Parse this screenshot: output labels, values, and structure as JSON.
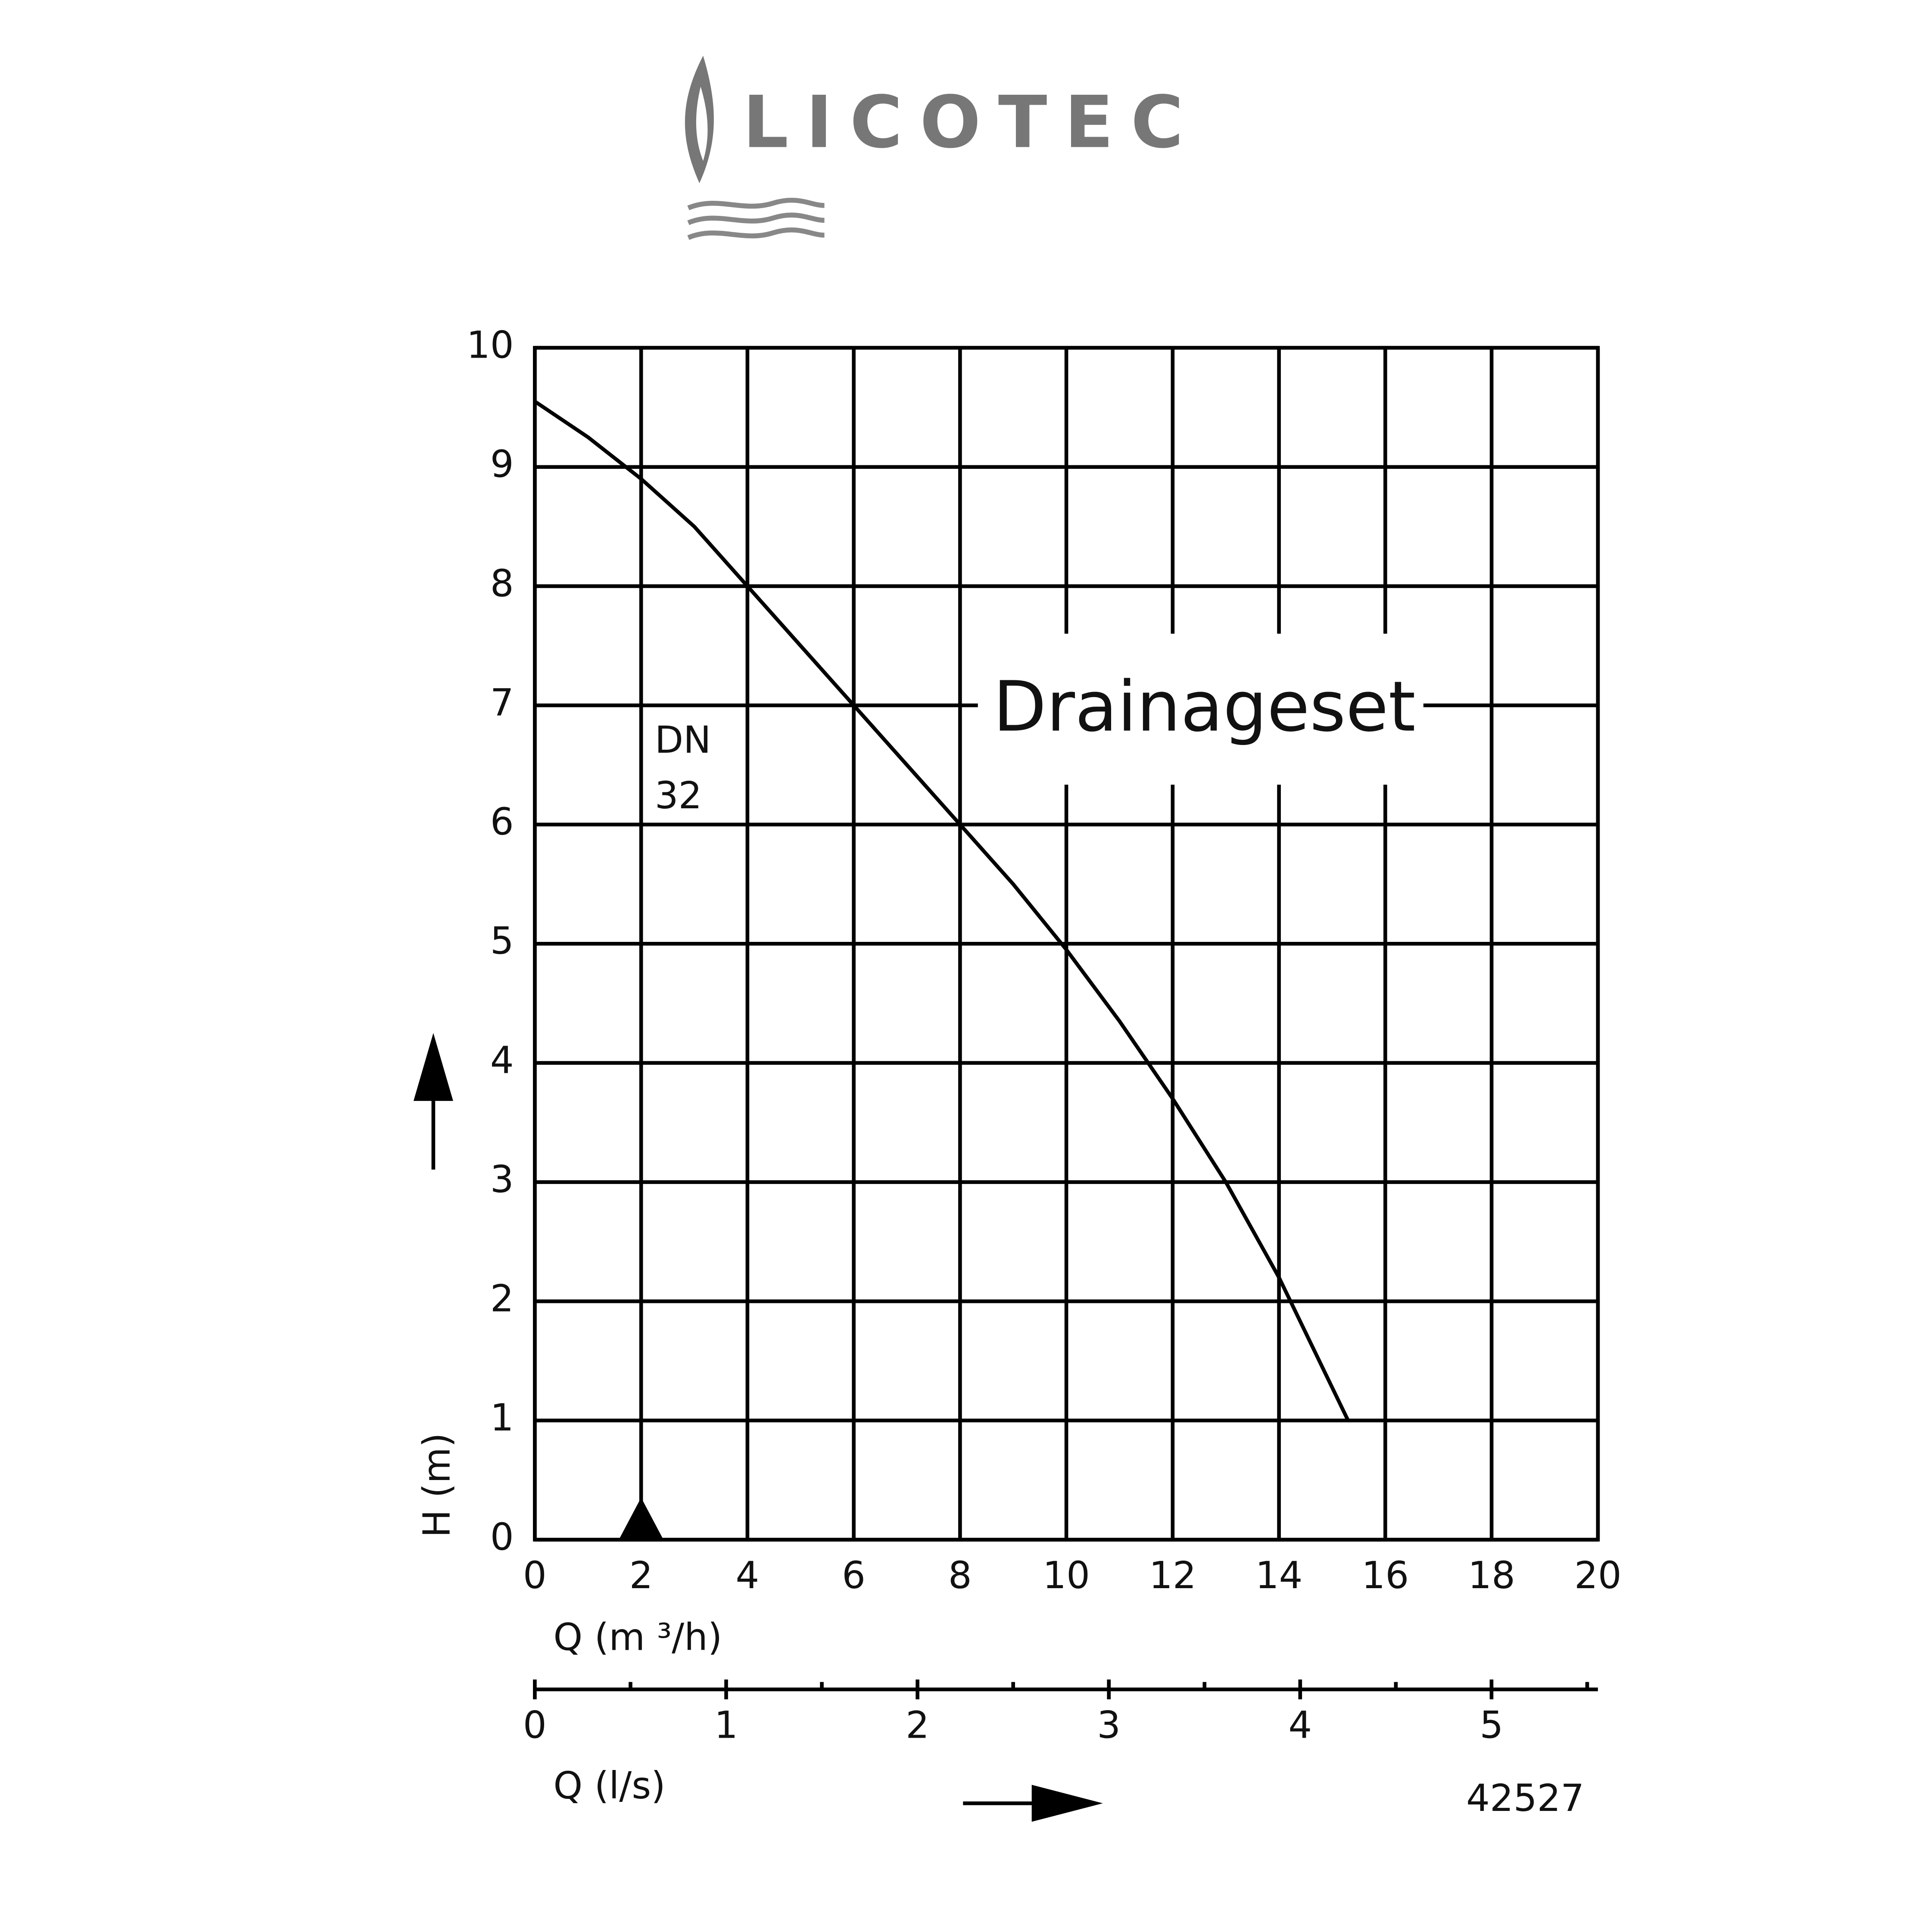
{
  "logo": "LICOTEC",
  "chart_data": {
    "type": "line",
    "annotation": "Drainageset",
    "marker_label": [
      "DN",
      "32"
    ],
    "marker_x": 2,
    "code": "42527",
    "x_label": "Q (m ³/h)",
    "y_label": "H (m)",
    "x2_label": "Q (l/s)",
    "x": [
      0,
      1,
      2,
      3,
      4,
      5,
      6,
      7,
      8,
      9,
      10,
      11,
      12,
      13,
      14,
      15.3
    ],
    "series": [
      {
        "color": "#000000",
        "values": [
          9.55,
          9.25,
          8.9,
          8.5,
          8.0,
          7.5,
          7.0,
          6.5,
          6.0,
          5.5,
          4.95,
          4.35,
          3.7,
          3.0,
          2.2,
          1.0
        ]
      }
    ],
    "xlim": [
      0,
      20
    ],
    "xticks": [
      0,
      2,
      4,
      6,
      8,
      10,
      12,
      14,
      16,
      18,
      20
    ],
    "ylim": [
      0,
      10
    ],
    "yticks": [
      0,
      1,
      2,
      3,
      4,
      5,
      6,
      7,
      8,
      9,
      10
    ],
    "x2lim": [
      0,
      5.556
    ],
    "x2ticks": [
      0,
      1,
      2,
      3,
      4,
      5
    ],
    "x2minorticks": [
      0.5,
      1.5,
      2.5,
      3.5,
      4.5,
      5.5
    ],
    "grid": true
  }
}
